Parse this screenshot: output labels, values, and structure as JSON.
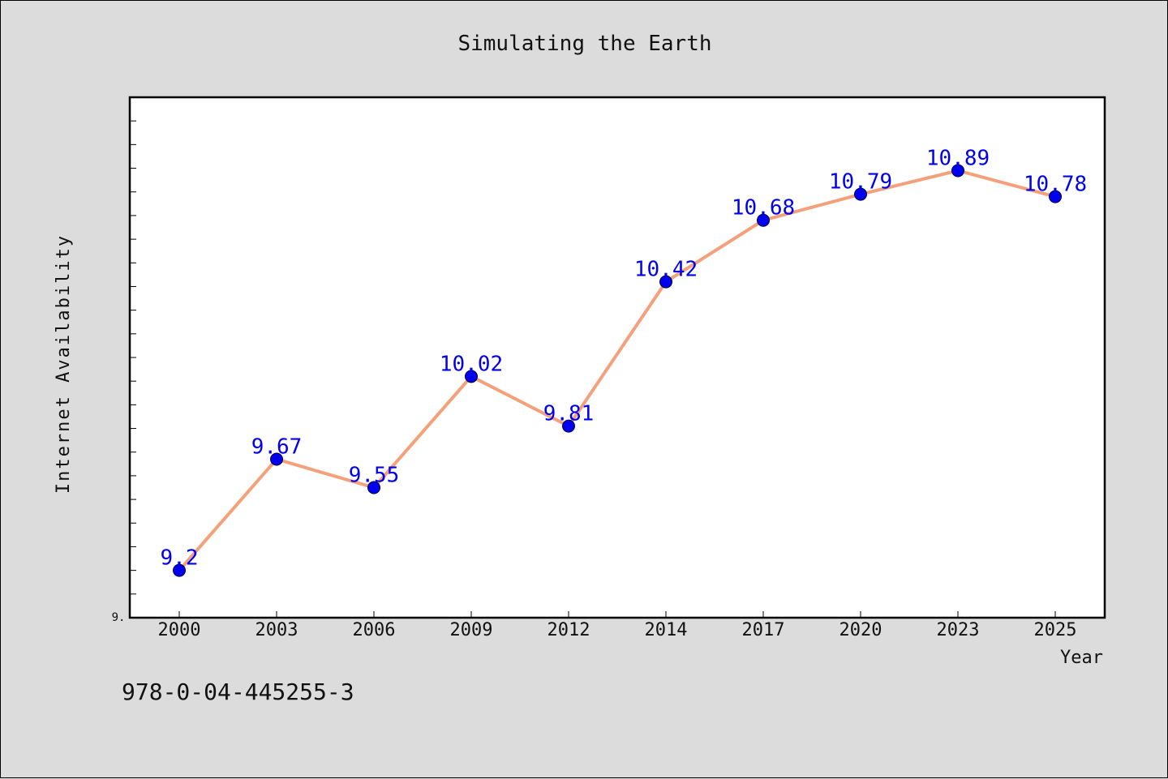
{
  "chart_data": {
    "type": "line",
    "title": "Simulating the Earth",
    "xlabel": "Year",
    "ylabel": "Internet Availability",
    "categories": [
      "2000",
      "2003",
      "2006",
      "2009",
      "2012",
      "2014",
      "2017",
      "2020",
      "2023",
      "2025"
    ],
    "series": [
      {
        "values": [
          9.2,
          9.67,
          9.55,
          10.02,
          9.81,
          10.42,
          10.68,
          10.79,
          10.89,
          10.78
        ],
        "labels": [
          "9.2",
          "9.67",
          "9.55",
          "10.02",
          "9.81",
          "10.42",
          "10.68",
          "10.79",
          "10.89",
          "10.78"
        ]
      }
    ],
    "ylim": [
      9.0,
      11.2
    ],
    "y_tick_label": "9.",
    "grid": false,
    "line_color": "#f4a07a",
    "marker_color": "#0000ee",
    "label_color": "#0000ee"
  },
  "footnote": "978-0-04-445255-3"
}
